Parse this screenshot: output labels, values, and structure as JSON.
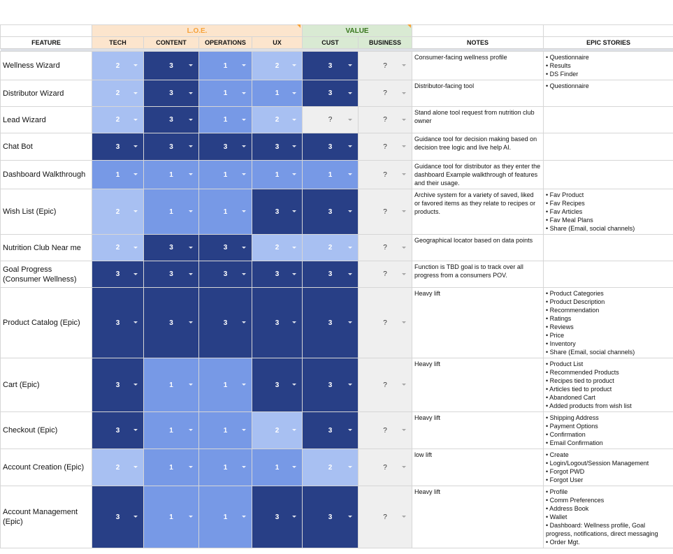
{
  "headers": {
    "loe": "L.O.E.",
    "value": "VALUE",
    "feature": "FEATURE",
    "tech": "TECH",
    "content": "CONTENT",
    "operations": "OPERATIONS",
    "ux": "UX",
    "cust": "CUST",
    "business": "BUSINESS",
    "notes": "NOTES",
    "epic": "EPIC STORIES"
  },
  "colors": {
    "1": "#7799e6",
    "2": "#a8c0f2",
    "3": "#283f86",
    "?": "#efefef"
  },
  "rows": [
    {
      "feature": "Wellness Wizard",
      "scores": [
        "2",
        "3",
        "1",
        "2",
        "3",
        "?"
      ],
      "notes": "Consumer-facing wellness profile",
      "epic": [
        "• Questionnaire",
        "• Results",
        "• DS Finder"
      ]
    },
    {
      "feature": "Distributor Wizard",
      "scores": [
        "2",
        "3",
        "1",
        "1",
        "3",
        "?"
      ],
      "notes": "Distributor-facing tool",
      "epic": [
        "• Questionnaire"
      ]
    },
    {
      "feature": "Lead Wizard",
      "scores": [
        "2",
        "3",
        "1",
        "2",
        "?",
        "?"
      ],
      "notes": "Stand alone tool request from nutrition club owner",
      "epic": []
    },
    {
      "feature": "Chat Bot",
      "scores": [
        "3",
        "3",
        "3",
        "3",
        "3",
        "?"
      ],
      "notes": "Guidance tool for decision making based on decision tree logic and live help AI.",
      "epic": []
    },
    {
      "feature": "Dashboard Walkthrough",
      "scores": [
        "1",
        "1",
        "1",
        "1",
        "1",
        "?"
      ],
      "notes": "Guidance tool for distributor as they enter the dashboard Example walkthrough of features and their usage.",
      "epic": []
    },
    {
      "feature": "Wish List (Epic)",
      "scores": [
        "2",
        "1",
        "1",
        "3",
        "3",
        "?"
      ],
      "notes": "Archive system for a variety of saved, liked or favored items as they relate to recipes or products.",
      "epic": [
        "• Fav Product",
        "• Fav Recipes",
        "• Fav Articles",
        "• Fav Meal Plans",
        "• Share (Email, social channels)"
      ]
    },
    {
      "feature": "Nutrition Club Near me",
      "scores": [
        "2",
        "3",
        "3",
        "2",
        "2",
        "?"
      ],
      "notes": "Geographical locator based on data points",
      "epic": []
    },
    {
      "feature": "Goal Progress (Consumer Wellness)",
      "scores": [
        "3",
        "3",
        "3",
        "3",
        "3",
        "?"
      ],
      "notes": "Function is TBD goal is to track over all progress from a consumers POV.",
      "epic": []
    },
    {
      "feature": "Product Catalog (Epic)",
      "scores": [
        "3",
        "3",
        "3",
        "3",
        "3",
        "?"
      ],
      "notes": "Heavy lift",
      "epic": [
        "• Product Categories",
        "• Product Description",
        "• Recommendation",
        "• Ratings",
        "• Reviews",
        "• Price",
        "• Inventory",
        "• Share (Email, social channels)"
      ]
    },
    {
      "feature": "Cart (Epic)",
      "scores": [
        "3",
        "1",
        "1",
        "3",
        "3",
        "?"
      ],
      "notes": "Heavy lift",
      "epic": [
        "• Product List",
        "• Recommended Products",
        "• Recipes tied to product",
        "• Articles tied to product",
        "• Abandoned Cart",
        "• Added products from wish list"
      ]
    },
    {
      "feature": "Checkout (Epic)",
      "scores": [
        "3",
        "1",
        "1",
        "2",
        "3",
        "?"
      ],
      "notes": "Heavy lift",
      "epic": [
        "• Shipping Address",
        "• Payment Options",
        "• Confirmation",
        "• Email Confirmation"
      ]
    },
    {
      "feature": "Account Creation (Epic)",
      "scores": [
        "2",
        "1",
        "1",
        "1",
        "2",
        "?"
      ],
      "notes": "low lift",
      "epic": [
        "•  Create",
        "•  Login/Logout/Session Management",
        "•  Forgot PWD",
        "•  Forgot User"
      ]
    },
    {
      "feature": "Account Management (Epic)",
      "scores": [
        "3",
        "1",
        "1",
        "3",
        "3",
        "?"
      ],
      "notes": "Heavy lift",
      "epic": [
        "• Profile",
        "• Comm Preferences",
        "• Address Book",
        "• Wallet",
        "• Dashboard: Wellness profile, Goal progress, notifications, direct messaging",
        "• Order Mgt."
      ]
    }
  ]
}
